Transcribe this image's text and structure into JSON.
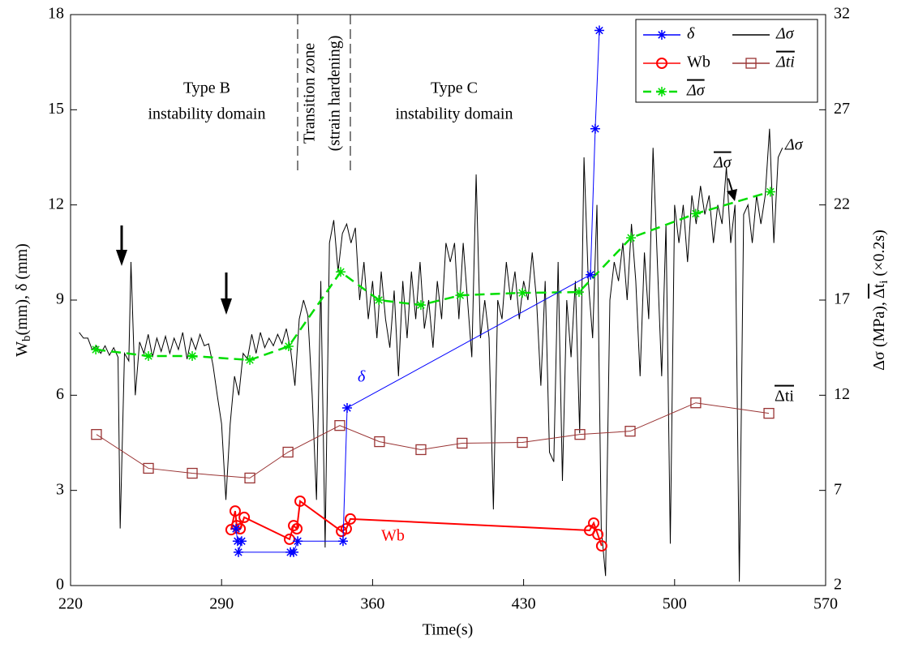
{
  "chart_data": {
    "type": "line",
    "x_label": "Time(s)",
    "y_label": [
      "W",
      "b",
      "(mm),  δ (mm)"
    ],
    "y2_label": [
      "Δσ (MPa),  ",
      "Δt",
      "i",
      " (×0.2s)"
    ],
    "xlim": [
      220,
      570
    ],
    "xticks": [
      220,
      290,
      360,
      430,
      500,
      570
    ],
    "ylim": [
      0,
      18
    ],
    "yticks": [
      0,
      3,
      6,
      9,
      12,
      15,
      18
    ],
    "y2lim": [
      2,
      32
    ],
    "y2ticks": [
      2,
      7,
      12,
      17,
      22,
      27,
      32
    ],
    "annotations": [
      [
        "Type B",
        "instability domain"
      ],
      [
        "Transition zone",
        "(strain hardening)"
      ],
      [
        "Type C",
        "instability domain"
      ]
    ],
    "series": [
      {
        "name": "δ",
        "color": "#0000ff",
        "marker": "star",
        "x": [
          296.7,
          297.4,
          299.3,
          297.8,
          321.9,
          323.4,
          325.3,
          346.3,
          348.2,
          461,
          463.2,
          465.1
        ],
        "values": [
          1.79,
          1.4,
          1.4,
          1.05,
          1.05,
          1.05,
          1.4,
          1.4,
          5.6,
          9.8,
          14.4,
          17.5
        ]
      },
      {
        "name": "Wb",
        "color": "#ff0000",
        "marker": "circle",
        "x": [
          294.4,
          296.3,
          297,
          298.6,
          300.5,
          321.5,
          323.4,
          324.9,
          326.4,
          345.6,
          347.8,
          349.7,
          460.6,
          462.5,
          464.4,
          466.2
        ],
        "values": [
          1.76,
          2.35,
          1.89,
          1.79,
          2.15,
          1.46,
          1.89,
          1.79,
          2.66,
          1.71,
          1.79,
          2.1,
          1.74,
          1.97,
          1.61,
          1.25
        ]
      },
      {
        "name": "Δσ",
        "color": "#00dd00",
        "marker": "star",
        "dash": true,
        "overline": true,
        "axis": "y2",
        "x": [
          231.7,
          256.1,
          276.4,
          303.1,
          321.1,
          345.2,
          362.9,
          382.4,
          400.6,
          429.4,
          455.7,
          479.8,
          509.8,
          544.4
        ],
        "values": [
          14.4,
          14.06,
          14.06,
          13.85,
          14.57,
          18.48,
          17.0,
          16.74,
          17.25,
          17.38,
          17.42,
          20.27,
          21.54,
          22.69
        ]
      },
      {
        "name": "Δσ",
        "color": "#000000",
        "axis": "y2",
        "x": [
          224,
          226,
          228,
          230,
          232,
          234,
          236,
          238,
          240,
          242,
          243,
          245,
          247,
          248,
          250,
          252,
          254,
          256,
          258,
          260,
          262,
          264,
          266,
          268,
          270,
          272,
          274,
          276,
          278,
          280,
          282,
          284,
          286,
          288,
          290,
          292,
          294,
          296,
          298,
          300,
          302,
          304,
          306,
          308,
          310,
          312,
          314,
          316,
          318,
          320,
          322,
          324,
          326,
          328,
          330,
          332,
          334,
          336,
          338,
          340,
          342,
          344,
          346,
          348,
          350,
          352,
          354,
          356,
          358,
          360,
          362,
          364,
          366,
          368,
          370,
          372,
          374,
          376,
          378,
          380,
          382,
          384,
          386,
          388,
          390,
          392,
          394,
          396,
          398,
          400,
          402,
          404,
          406,
          408,
          410,
          412,
          414,
          416,
          418,
          420,
          422,
          424,
          426,
          428,
          430,
          432,
          434,
          436,
          438,
          440,
          442,
          444,
          446,
          448,
          450,
          452,
          454,
          456,
          458,
          460,
          462,
          464,
          466,
          468,
          470,
          472,
          474,
          476,
          478,
          480,
          482,
          484,
          486,
          488,
          490,
          492,
          494,
          496,
          498,
          500,
          502,
          504,
          506,
          508,
          510,
          512,
          514,
          516,
          518,
          520,
          522,
          524,
          526,
          528,
          530,
          532,
          534,
          536,
          538,
          540,
          542,
          544,
          546,
          548,
          550
        ],
        "values": [
          15.3,
          15.0,
          15.0,
          14.4,
          14.6,
          14.2,
          14.6,
          14.1,
          14.5,
          14.0,
          5.0,
          14.2,
          13.8,
          19.0,
          12.0,
          14.8,
          14.2,
          15.2,
          14.0,
          15.0,
          14.3,
          15.1,
          14.2,
          15.0,
          14.4,
          15.3,
          13.9,
          15.0,
          14.4,
          15.2,
          14.6,
          14.7,
          13.6,
          12.0,
          10.5,
          6.5,
          10.5,
          13.0,
          12.0,
          14.2,
          13.9,
          15.2,
          14.2,
          15.3,
          14.5,
          15.0,
          14.6,
          15.2,
          14.7,
          15.5,
          14.4,
          12.5,
          16.0,
          17.0,
          16.2,
          12.0,
          6.5,
          18.0,
          4.0,
          20.0,
          21.2,
          18.5,
          20.5,
          21.0,
          20.0,
          20.8,
          17.0,
          19.0,
          16.0,
          18.0,
          15.0,
          18.5,
          16.0,
          14.5,
          17.5,
          13.0,
          18.0,
          15.0,
          18.5,
          16.0,
          19.0,
          15.5,
          17.0,
          14.5,
          18.0,
          16.0,
          20.0,
          19.0,
          20.0,
          16.0,
          20.0,
          17.0,
          14.0,
          23.6,
          15.0,
          17.0,
          15.0,
          6.0,
          17.0,
          16.0,
          19.0,
          17.0,
          18.5,
          16.0,
          18.0,
          17.0,
          19.5,
          17.0,
          12.5,
          18.0,
          9.0,
          8.5,
          19.0,
          7.5,
          17.0,
          14.0,
          18.0,
          10.0,
          24.5,
          18.0,
          15.0,
          22.0,
          5.0,
          2.5,
          17.0,
          19.0,
          18.0,
          20.0,
          17.0,
          21.0,
          18.0,
          13.0,
          19.5,
          16.0,
          25.0,
          19.0,
          13.0,
          21.0,
          4.2,
          22.0,
          20.0,
          22.0,
          19.0,
          22.5,
          21.0,
          23.0,
          21.5,
          22.5,
          20.0,
          22.0,
          21.0,
          24.0,
          20.0,
          22.0,
          2.2,
          21.5,
          22.0,
          20.0,
          22.5,
          21.0,
          22.5,
          26.0,
          20.0,
          24.5,
          25.0
        ]
      },
      {
        "name": "Δti",
        "color": "#993333",
        "marker": "square",
        "overline": true,
        "axis": "y2",
        "x": [
          232,
          256.1,
          276.4,
          303.1,
          320.8,
          344.8,
          363.2,
          382.4,
          401.5,
          429.4,
          456.1,
          479.4,
          509.8,
          543.7
        ],
        "values": [
          9.94,
          8.16,
          7.9,
          7.65,
          9.01,
          10.41,
          9.56,
          9.14,
          9.48,
          9.52,
          9.94,
          10.11,
          11.6,
          11.05
        ]
      }
    ]
  }
}
